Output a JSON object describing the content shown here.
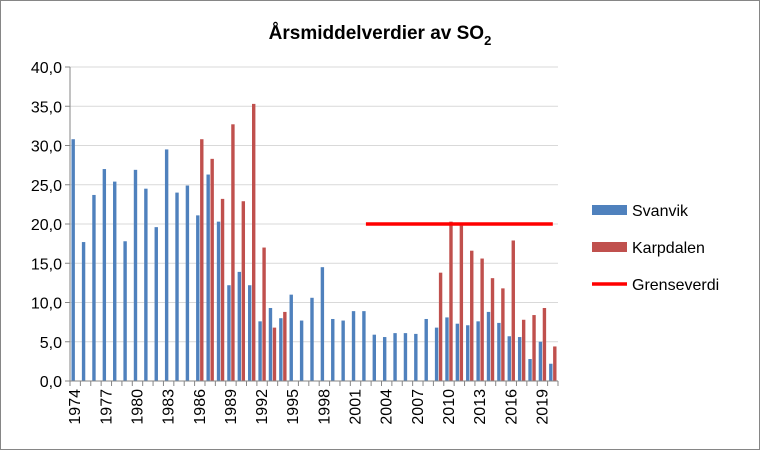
{
  "chart_data": {
    "type": "bar",
    "title": {
      "main": "Årsmiddelverdier av SO",
      "subscript": "2"
    },
    "xlabel": "",
    "ylabel": "",
    "ylim": [
      0,
      40
    ],
    "y_ticks": [
      "0,0",
      "5,0",
      "10,0",
      "15,0",
      "20,0",
      "25,0",
      "30,0",
      "35,0",
      "40,0"
    ],
    "x_tick_labels": [
      "1974",
      "1977",
      "1980",
      "1983",
      "1986",
      "1989",
      "1992",
      "1995",
      "1998",
      "2001",
      "2004",
      "2007",
      "2010",
      "2013",
      "2016",
      "2019"
    ],
    "categories": [
      1974,
      1975,
      1976,
      1977,
      1978,
      1979,
      1980,
      1981,
      1982,
      1983,
      1984,
      1985,
      1986,
      1987,
      1988,
      1989,
      1990,
      1991,
      1992,
      1993,
      1994,
      1995,
      1996,
      1997,
      1998,
      1999,
      2000,
      2001,
      2002,
      2003,
      2004,
      2005,
      2006,
      2007,
      2008,
      2009,
      2010,
      2011,
      2012,
      2013,
      2014,
      2015,
      2016,
      2017,
      2018,
      2019,
      2020
    ],
    "series": [
      {
        "name": "Svanvik",
        "color": "#4f81bd",
        "values": [
          30.8,
          17.7,
          23.7,
          27.0,
          25.4,
          17.8,
          26.9,
          24.5,
          19.6,
          29.5,
          24.0,
          24.9,
          21.1,
          26.3,
          20.3,
          12.2,
          13.9,
          12.2,
          7.6,
          9.3,
          8.0,
          11.0,
          7.7,
          10.6,
          14.5,
          7.9,
          7.7,
          8.9,
          8.9,
          5.9,
          5.6,
          6.1,
          6.1,
          6.0,
          7.9,
          6.8,
          8.1,
          7.3,
          7.1,
          7.6,
          8.8,
          7.4,
          5.7,
          5.6,
          2.8,
          5.0,
          2.2
        ]
      },
      {
        "name": "Karpdalen",
        "color": "#c0504d",
        "values": [
          null,
          null,
          null,
          null,
          null,
          null,
          null,
          null,
          null,
          null,
          null,
          null,
          30.8,
          28.3,
          23.2,
          32.7,
          22.9,
          35.3,
          17.0,
          6.8,
          8.8,
          null,
          null,
          null,
          null,
          null,
          null,
          null,
          null,
          null,
          null,
          null,
          null,
          null,
          null,
          13.8,
          20.3,
          19.8,
          16.6,
          15.6,
          13.1,
          11.8,
          17.9,
          7.8,
          8.4,
          9.3,
          4.4
        ]
      }
    ],
    "reference_line": {
      "name": "Grenseverdi",
      "color": "#ff0000",
      "value": 20,
      "x_start": 2002,
      "x_end": 2020
    },
    "legend_position": "right",
    "grid": "horizontal"
  }
}
